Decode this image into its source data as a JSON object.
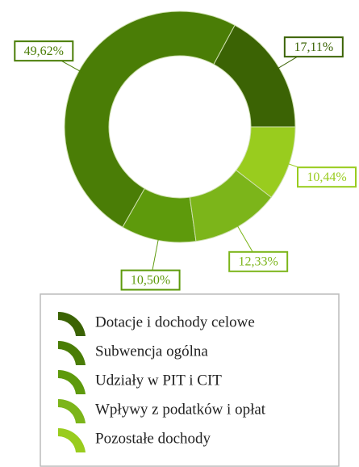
{
  "chart_data": {
    "type": "donut",
    "categories": [
      "Dotacje i dochody celowe",
      "Subwencja ogólna",
      "Udziały w PIT i CIT",
      "Wpływy z podatków i opłat",
      "Pozostałe dochody"
    ],
    "values": [
      17.11,
      49.62,
      10.5,
      12.33,
      10.44
    ],
    "value_labels": [
      "17,11%",
      "49,62%",
      "10,50%",
      "12,33%",
      "10,44%"
    ],
    "colors": [
      "#3b6304",
      "#4a7d06",
      "#5e9a0c",
      "#7cb51a",
      "#99cc1e"
    ],
    "legend": "bottom"
  }
}
